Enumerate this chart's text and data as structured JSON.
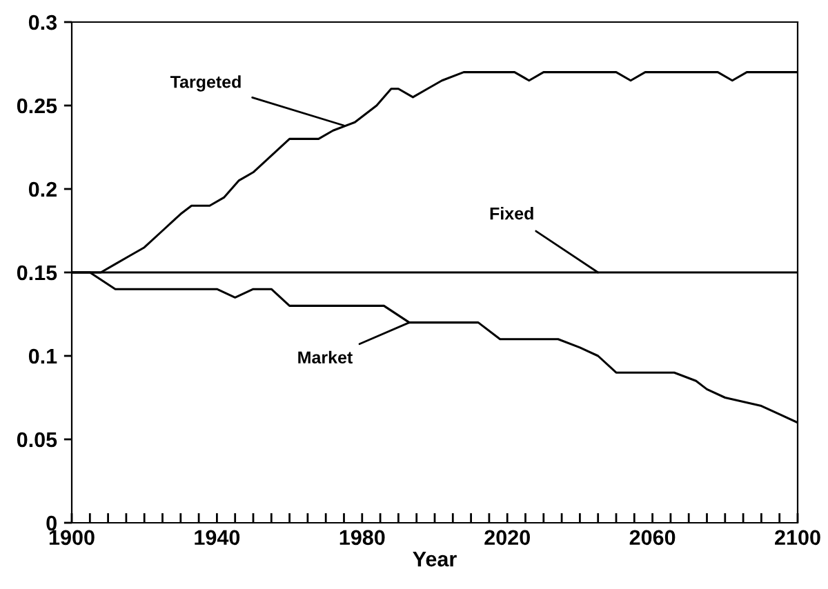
{
  "chart_data": {
    "type": "line",
    "xlabel": "Year",
    "xlim": [
      1900,
      2100
    ],
    "xticks": [
      1900,
      {
        "value": 1905,
        "label": null
      },
      {
        "value": 1910,
        "label": null
      },
      {
        "value": 1915,
        "label": null
      },
      {
        "value": 1920,
        "label": null
      },
      {
        "value": 1925,
        "label": null
      },
      {
        "value": 1930,
        "label": null
      },
      {
        "value": 1935,
        "label": null
      },
      1940,
      {
        "value": 1945,
        "label": null
      },
      {
        "value": 1950,
        "label": null
      },
      {
        "value": 1955,
        "label": null
      },
      {
        "value": 1960,
        "label": null
      },
      {
        "value": 1965,
        "label": null
      },
      {
        "value": 1970,
        "label": null
      },
      {
        "value": 1975,
        "label": null
      },
      1980,
      {
        "value": 1985,
        "label": null
      },
      {
        "value": 1990,
        "label": null
      },
      {
        "value": 1995,
        "label": null
      },
      {
        "value": 2000,
        "label": null
      },
      {
        "value": 2005,
        "label": null
      },
      {
        "value": 2010,
        "label": null
      },
      {
        "value": 2015,
        "label": null
      },
      2020,
      {
        "value": 2025,
        "label": null
      },
      {
        "value": 2030,
        "label": null
      },
      {
        "value": 2035,
        "label": null
      },
      {
        "value": 2040,
        "label": null
      },
      {
        "value": 2045,
        "label": null
      },
      {
        "value": 2050,
        "label": null
      },
      {
        "value": 2055,
        "label": null
      },
      2060,
      {
        "value": 2065,
        "label": null
      },
      {
        "value": 2070,
        "label": null
      },
      {
        "value": 2075,
        "label": null
      },
      {
        "value": 2080,
        "label": null
      },
      {
        "value": 2085,
        "label": null
      },
      {
        "value": 2090,
        "label": null
      },
      {
        "value": 2095,
        "label": null
      },
      2100
    ],
    "ylim": [
      0,
      0.3
    ],
    "yticks": [
      0,
      0.05,
      0.1,
      0.15,
      0.2,
      0.25,
      0.3
    ],
    "grid": false,
    "legend": false,
    "marker": "none",
    "line_style": "solid",
    "series": [
      {
        "color": "#000000",
        "x": [
          1900,
          1908,
          1912,
          1916,
          1920,
          1925,
          1930,
          1933,
          1938,
          1942,
          1946,
          1950,
          1955,
          1960,
          1968,
          1972,
          1978,
          1984,
          1988,
          1990,
          1994,
          1998,
          2002,
          2008,
          2022,
          2026,
          2030,
          2050,
          2054,
          2058,
          2078,
          2082,
          2086,
          2100
        ],
        "values": [
          0.15,
          0.15,
          0.155,
          0.16,
          0.165,
          0.175,
          0.185,
          0.19,
          0.19,
          0.195,
          0.205,
          0.21,
          0.22,
          0.23,
          0.23,
          0.235,
          0.24,
          0.25,
          0.26,
          0.26,
          0.255,
          0.26,
          0.265,
          0.27,
          0.27,
          0.265,
          0.27,
          0.27,
          0.265,
          0.27,
          0.27,
          0.265,
          0.27,
          0.27
        ]
      },
      {
        "color": "#000000",
        "x": [
          1900,
          2100
        ],
        "values": [
          0.15,
          0.15
        ]
      },
      {
        "color": "#000000",
        "x": [
          1900,
          1905,
          1912,
          1940,
          1945,
          1950,
          1955,
          1960,
          1986,
          1993,
          2012,
          2018,
          2034,
          2040,
          2045,
          2050,
          2066,
          2072,
          2075,
          2080,
          2090,
          2095,
          2100
        ],
        "values": [
          0.15,
          0.15,
          0.14,
          0.14,
          0.135,
          0.14,
          0.14,
          0.13,
          0.13,
          0.12,
          0.12,
          0.11,
          0.11,
          0.105,
          0.1,
          0.09,
          0.09,
          0.085,
          0.08,
          0.075,
          0.07,
          0.065,
          0.06
        ]
      }
    ],
    "annotations": [
      {
        "text": "Targeted",
        "x": 1975,
        "y": 0.238
      },
      {
        "text": "Fixed",
        "x": 2045,
        "y": 0.15
      },
      {
        "text": "Market",
        "x": 1993,
        "y": 0.12
      }
    ]
  }
}
